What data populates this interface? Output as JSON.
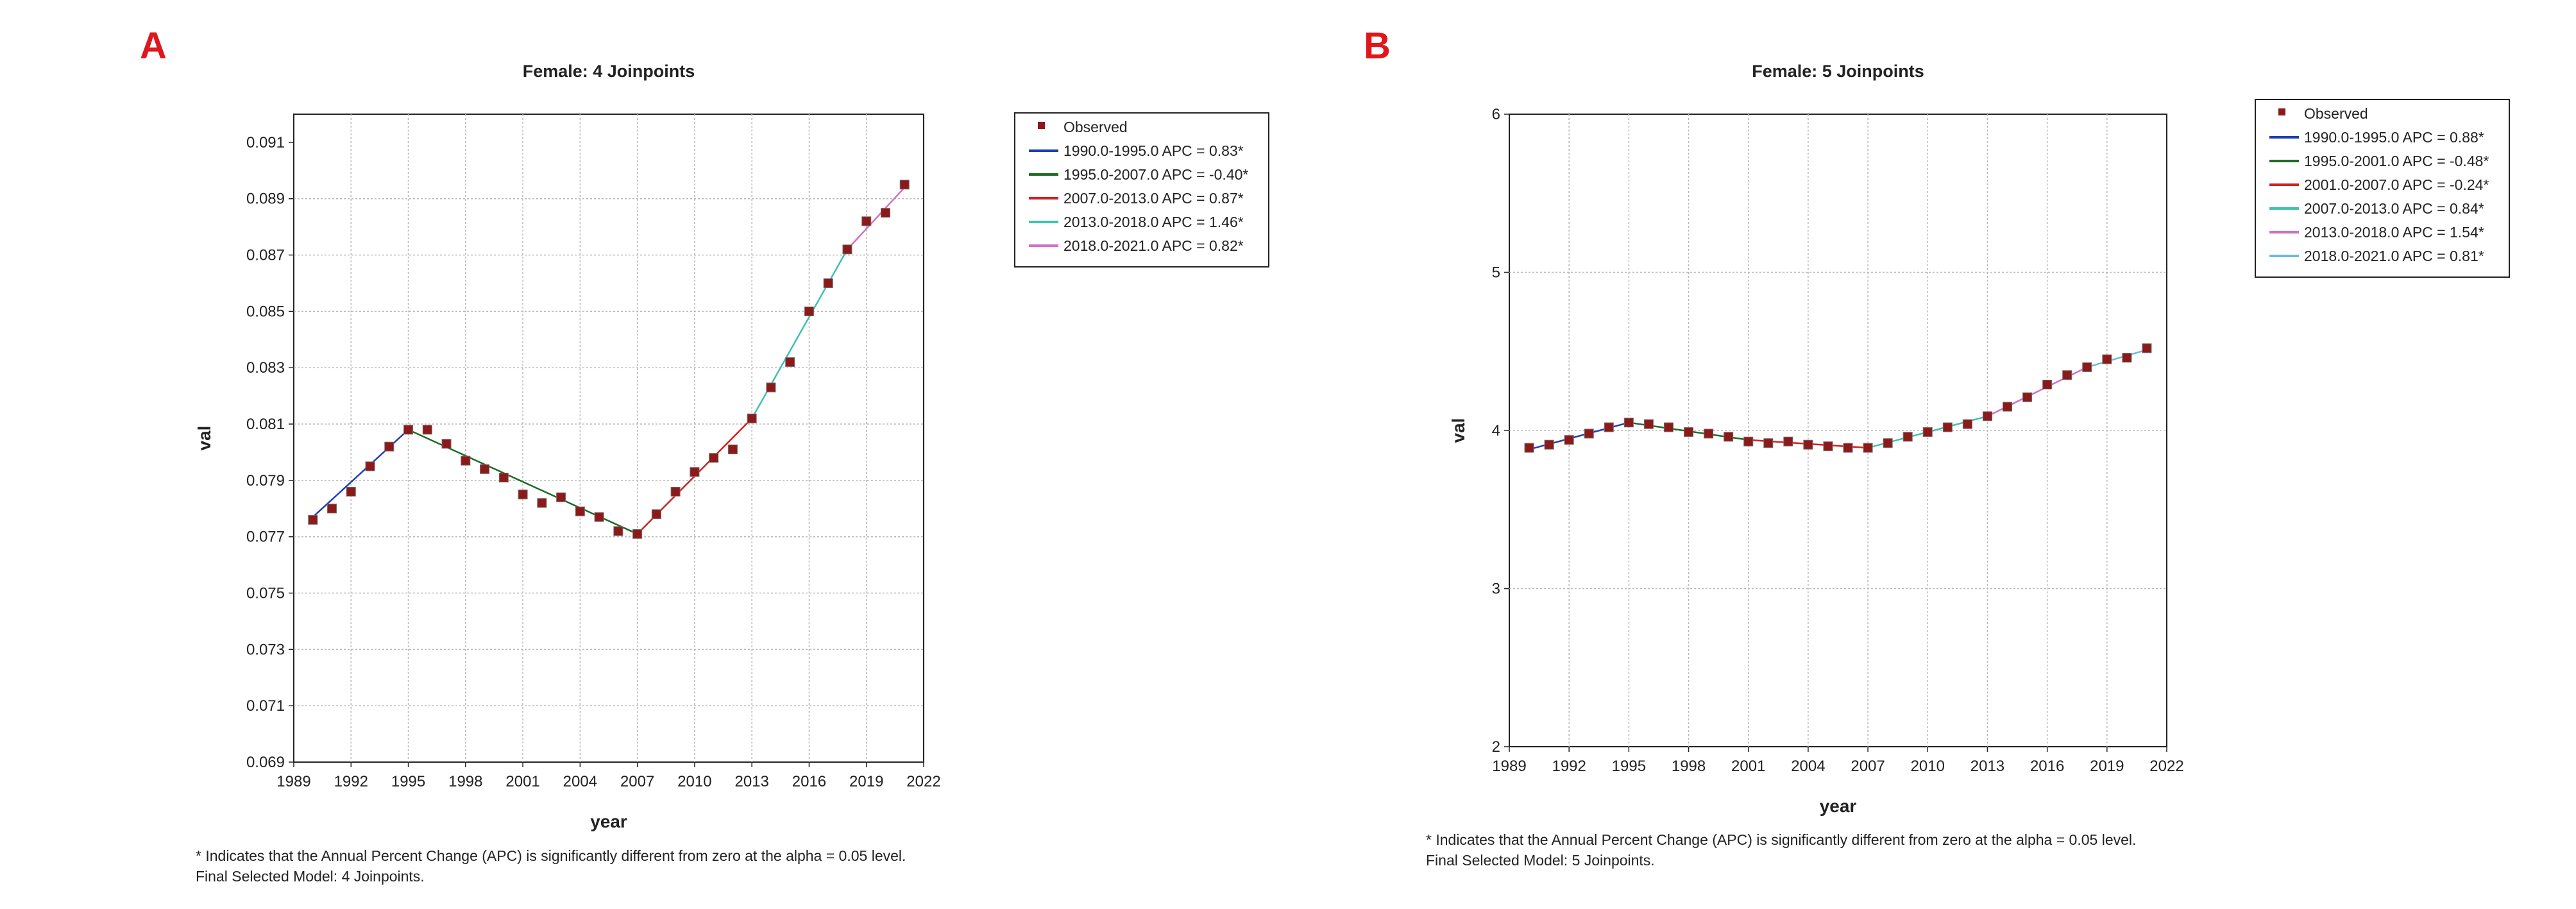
{
  "chart_data": [
    {
      "type": "line",
      "panel_letter": "A",
      "title": "Female: 4 Joinpoints",
      "xlabel": "year",
      "ylabel": "val",
      "xlim": [
        1989,
        2022
      ],
      "ylim": [
        0.069,
        0.092
      ],
      "x_ticks": [
        1989,
        1992,
        1995,
        1998,
        2001,
        2004,
        2007,
        2010,
        2013,
        2016,
        2019,
        2022
      ],
      "y_ticks": [
        0.069,
        0.071,
        0.073,
        0.075,
        0.077,
        0.079,
        0.081,
        0.083,
        0.085,
        0.087,
        0.089,
        0.091
      ],
      "y_tick_labels": [
        "0.069",
        "0.071",
        "0.073",
        "0.075",
        "0.077",
        "0.079",
        "0.081",
        "0.083",
        "0.085",
        "0.087",
        "0.089",
        "0.091"
      ],
      "grid": true,
      "legend_position": "right-outside-top",
      "observed": {
        "name": "Observed",
        "color": "#8b1a1a",
        "x": [
          1990,
          1991,
          1992,
          1993,
          1994,
          1995,
          1996,
          1997,
          1998,
          1999,
          2000,
          2001,
          2002,
          2003,
          2004,
          2005,
          2006,
          2007,
          2008,
          2009,
          2010,
          2011,
          2012,
          2013,
          2014,
          2015,
          2016,
          2017,
          2018,
          2019,
          2020,
          2021
        ],
        "y": [
          0.0776,
          0.078,
          0.0786,
          0.0795,
          0.0802,
          0.0808,
          0.0808,
          0.0803,
          0.0797,
          0.0794,
          0.0791,
          0.0785,
          0.0782,
          0.0784,
          0.0779,
          0.0777,
          0.0772,
          0.0771,
          0.0778,
          0.0786,
          0.0793,
          0.0798,
          0.0801,
          0.0812,
          0.0823,
          0.0832,
          0.085,
          0.086,
          0.0872,
          0.0882,
          0.0885,
          0.0895
        ]
      },
      "series": [
        {
          "name": "1990.0-1995.0 APC  =  0.83*",
          "color": "#1e3fb3",
          "x": [
            1990,
            1995
          ],
          "y": [
            0.0777,
            0.0808
          ]
        },
        {
          "name": "1995.0-2007.0 APC  =  -0.40*",
          "color": "#1e6b28",
          "x": [
            1995,
            2007
          ],
          "y": [
            0.0808,
            0.0771
          ]
        },
        {
          "name": "2007.0-2013.0 APC  =  0.87*",
          "color": "#d42020",
          "x": [
            2007,
            2013
          ],
          "y": [
            0.0771,
            0.0812
          ]
        },
        {
          "name": "2013.0-2018.0 APC  =  1.46*",
          "color": "#3fc0b0",
          "x": [
            2013,
            2018
          ],
          "y": [
            0.0812,
            0.0872
          ]
        },
        {
          "name": "2018.0-2021.0 APC  =  0.82*",
          "color": "#d070c8",
          "x": [
            2018,
            2021
          ],
          "y": [
            0.0872,
            0.0894
          ]
        }
      ],
      "footnote_lines": [
        "* Indicates that the Annual Percent Change (APC) is significantly different from zero at the alpha = 0.05 level.",
        "Final Selected Model: 4 Joinpoints."
      ]
    },
    {
      "type": "line",
      "panel_letter": "B",
      "title": "Female: 5 Joinpoints",
      "xlabel": "year",
      "ylabel": "val",
      "xlim": [
        1989,
        2022
      ],
      "ylim": [
        2,
        6
      ],
      "x_ticks": [
        1989,
        1992,
        1995,
        1998,
        2001,
        2004,
        2007,
        2010,
        2013,
        2016,
        2019,
        2022
      ],
      "y_ticks": [
        2,
        3,
        4,
        5,
        6
      ],
      "y_tick_labels": [
        "2",
        "3",
        "4",
        "5",
        "6"
      ],
      "grid": true,
      "legend_position": "right-outside-top",
      "observed": {
        "name": "Observed",
        "color": "#8b1a1a",
        "x": [
          1990,
          1991,
          1992,
          1993,
          1994,
          1995,
          1996,
          1997,
          1998,
          1999,
          2000,
          2001,
          2002,
          2003,
          2004,
          2005,
          2006,
          2007,
          2008,
          2009,
          2010,
          2011,
          2012,
          2013,
          2014,
          2015,
          2016,
          2017,
          2018,
          2019,
          2020,
          2021
        ],
        "y": [
          3.89,
          3.91,
          3.94,
          3.98,
          4.02,
          4.05,
          4.04,
          4.02,
          3.99,
          3.98,
          3.96,
          3.93,
          3.92,
          3.93,
          3.91,
          3.9,
          3.89,
          3.89,
          3.92,
          3.96,
          3.99,
          4.02,
          4.04,
          4.09,
          4.15,
          4.21,
          4.29,
          4.35,
          4.4,
          4.45,
          4.46,
          4.52
        ]
      },
      "series": [
        {
          "name": "1990.0-1995.0 APC  =  0.88*",
          "color": "#1e3fb3",
          "x": [
            1990,
            1995
          ],
          "y": [
            3.88,
            4.05
          ]
        },
        {
          "name": "1995.0-2001.0 APC  =  -0.48*",
          "color": "#1e6b28",
          "x": [
            1995,
            2001
          ],
          "y": [
            4.05,
            3.94
          ]
        },
        {
          "name": "2001.0-2007.0 APC  =  -0.24*",
          "color": "#d42020",
          "x": [
            2001,
            2007
          ],
          "y": [
            3.94,
            3.89
          ]
        },
        {
          "name": "2007.0-2013.0 APC  =  0.84*",
          "color": "#3fc0b0",
          "x": [
            2007,
            2013
          ],
          "y": [
            3.89,
            4.09
          ]
        },
        {
          "name": "2013.0-2018.0 APC  =  1.54*",
          "color": "#d070c8",
          "x": [
            2013,
            2018
          ],
          "y": [
            4.09,
            4.4
          ]
        },
        {
          "name": "2018.0-2021.0 APC  =  0.81*",
          "color": "#6fb8e0",
          "x": [
            2018,
            2021
          ],
          "y": [
            4.4,
            4.51
          ]
        }
      ],
      "footnote_lines": [
        "* Indicates that the Annual Percent Change (APC) is significantly different from zero at the alpha = 0.05 level.",
        "Final Selected Model: 5 Joinpoints."
      ]
    }
  ]
}
